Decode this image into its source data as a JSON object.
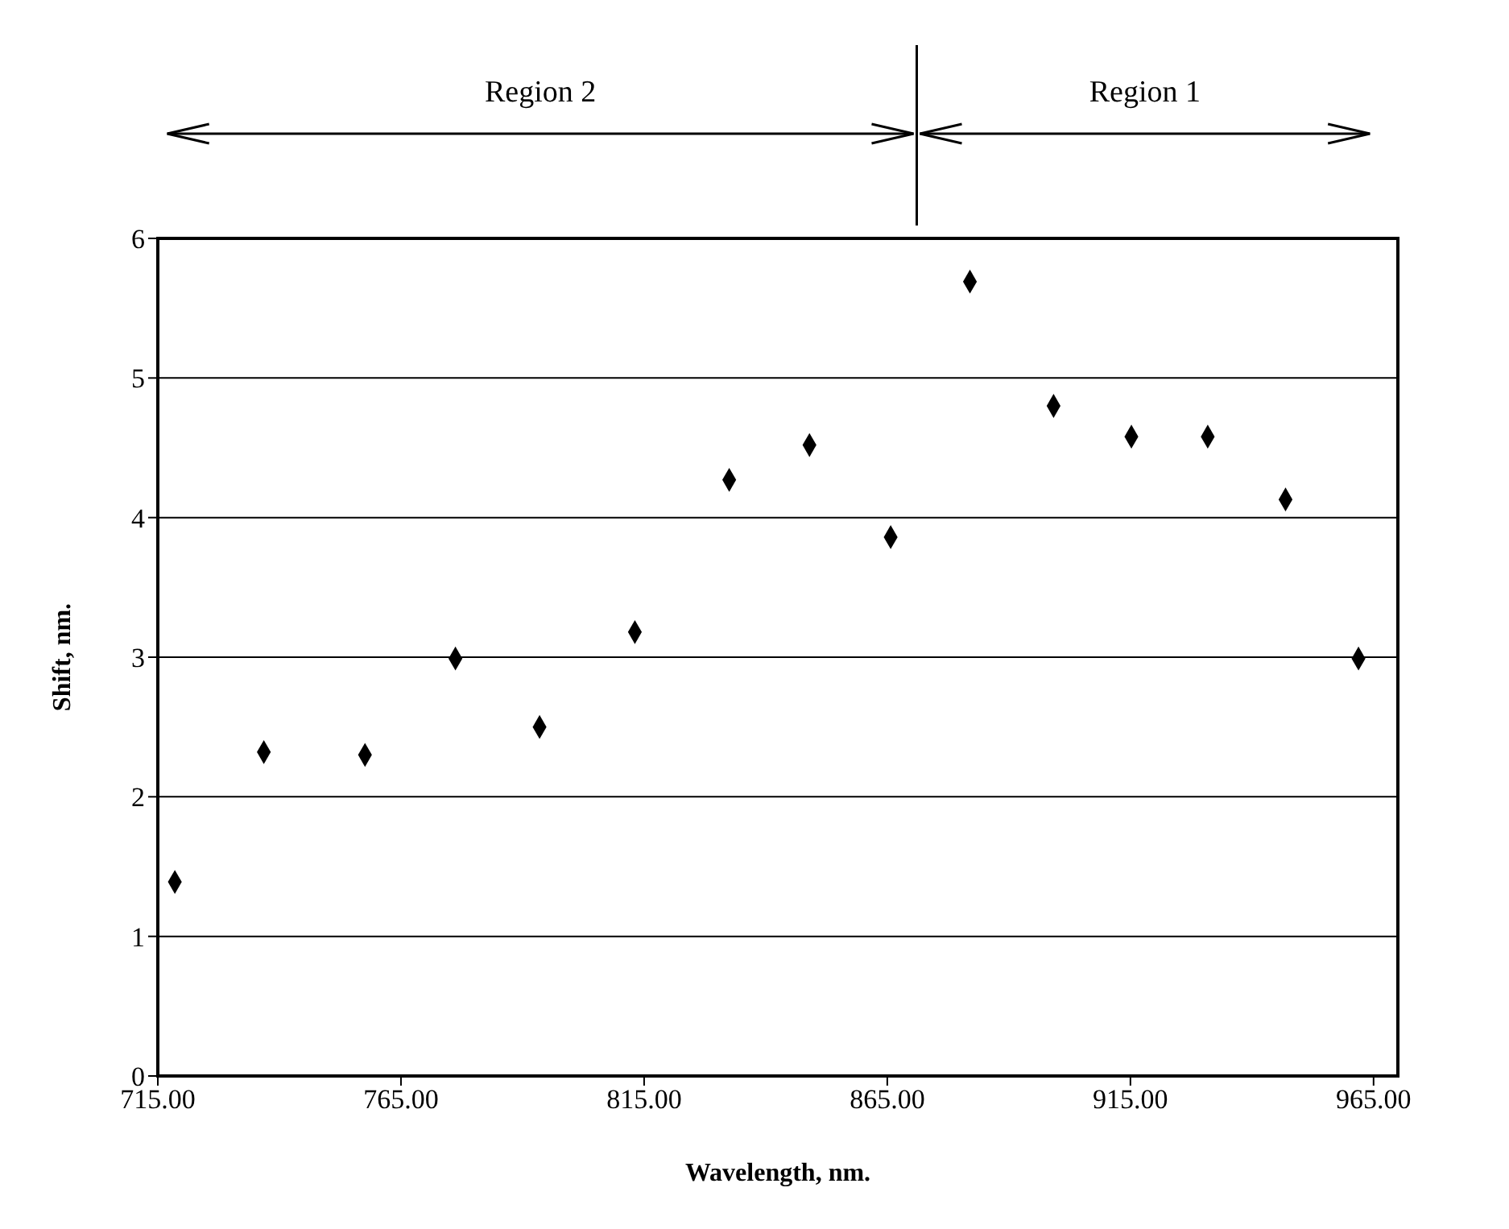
{
  "chart_data": {
    "type": "scatter",
    "xlabel": "Wavelength, nm.",
    "ylabel": "Shift, nm.",
    "x": [
      718.5,
      736.8,
      757.6,
      776.2,
      793.5,
      813.1,
      832.5,
      849,
      865.7,
      882,
      899.2,
      915.2,
      930.9,
      946.9,
      961.9
    ],
    "values": [
      1.39,
      2.32,
      2.3,
      2.99,
      2.5,
      3.18,
      4.27,
      4.52,
      3.86,
      5.69,
      4.8,
      4.58,
      4.58,
      4.13,
      2.99
    ],
    "color": "#000000",
    "marker": "diamond",
    "grid": "y",
    "xlim": [
      715,
      970
    ],
    "xticks": [
      {
        "value": 715,
        "label": "715.00"
      },
      {
        "value": 765,
        "label": "765.00"
      },
      {
        "value": 815,
        "label": "815.00"
      },
      {
        "value": 865,
        "label": "865.00"
      },
      {
        "value": 915,
        "label": "915.00"
      },
      {
        "value": 965,
        "label": "965.00"
      }
    ],
    "ylim": [
      0,
      6
    ],
    "yticks": [
      0,
      1,
      2,
      3,
      4,
      5,
      6
    ],
    "annotations": [
      "Region 2",
      "Region 1"
    ]
  }
}
